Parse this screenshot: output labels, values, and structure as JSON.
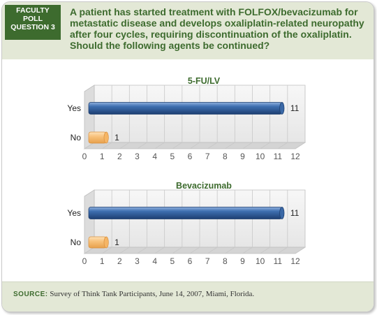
{
  "header": {
    "badge_lines": [
      "FACULTY",
      "POLL",
      "QUESTION 3"
    ],
    "question": "A patient has started treatment with FOLFOX/bevacizumab for metastatic disease and develops oxaliplatin-related neuropathy after four cycles, requiring discontinuation of the oxaliplatin. Should the following agents be continued?"
  },
  "footer": {
    "source_label": "SOURCE:",
    "source_text": "Survey of Think Tank Participants, June 14, 2007, Miami, Florida."
  },
  "colors": {
    "yes_bar": "#2e5a97",
    "no_bar": "#f8bc6e",
    "green": "#3d6b2e",
    "header_bg": "#e3e8d6"
  },
  "chart_data": [
    {
      "type": "bar",
      "orientation": "horizontal",
      "title": "5-FU/LV",
      "categories": [
        "Yes",
        "No"
      ],
      "values": [
        11,
        1
      ],
      "value_labels": [
        "11",
        "1"
      ],
      "xlim": [
        0,
        12
      ],
      "ticks": [
        "0",
        "1",
        "2",
        "3",
        "4",
        "5",
        "6",
        "7",
        "8",
        "9",
        "10",
        "11",
        "12"
      ],
      "grid": true
    },
    {
      "type": "bar",
      "orientation": "horizontal",
      "title": "Bevacizumab",
      "categories": [
        "Yes",
        "No"
      ],
      "values": [
        11,
        1
      ],
      "value_labels": [
        "11",
        "1"
      ],
      "xlim": [
        0,
        12
      ],
      "ticks": [
        "0",
        "1",
        "2",
        "3",
        "4",
        "5",
        "6",
        "7",
        "8",
        "9",
        "10",
        "11",
        "12"
      ],
      "grid": true
    }
  ]
}
